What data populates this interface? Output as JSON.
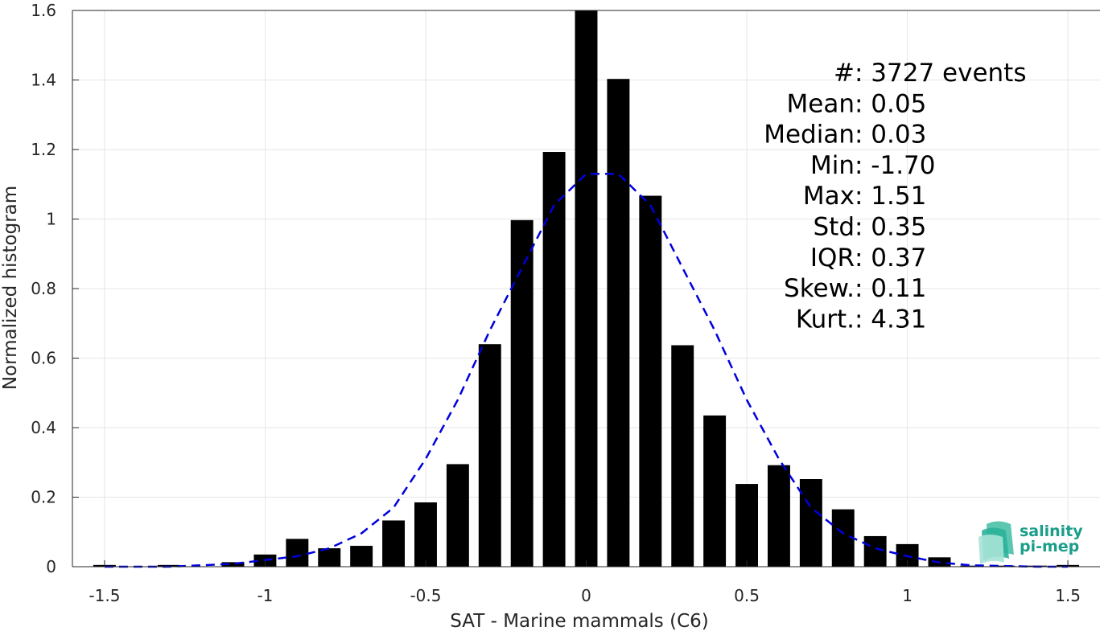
{
  "chart_data": {
    "type": "bar",
    "xlabel": "SAT - Marine mammals (C6)",
    "ylabel": "Normalized histogram",
    "xlim": [
      -1.6,
      1.6
    ],
    "ylim": [
      0,
      1.6
    ],
    "xticks": [
      -1.5,
      -1,
      -0.5,
      0,
      0.5,
      1,
      1.5
    ],
    "xtick_labels": [
      "-1.5",
      "-1",
      "-0.5",
      "0",
      "0.5",
      "1",
      "1.5"
    ],
    "yticks": [
      0,
      0.2,
      0.4,
      0.6,
      0.8,
      1,
      1.2,
      1.4,
      1.6
    ],
    "ytick_labels": [
      "0",
      "0.2",
      "0.4",
      "0.6",
      "0.8",
      "1",
      "1.2",
      "1.4",
      "1.6"
    ],
    "grid": true,
    "bin_width": 0.1,
    "bars": {
      "name": "histogram",
      "color": "#000000",
      "centers": [
        -1.5,
        -1.4,
        -1.3,
        -1.2,
        -1.1,
        -1.0,
        -0.9,
        -0.8,
        -0.7,
        -0.6,
        -0.5,
        -0.4,
        -0.3,
        -0.2,
        -0.1,
        0.0,
        0.1,
        0.2,
        0.3,
        0.4,
        0.5,
        0.6,
        0.7,
        0.8,
        0.9,
        1.0,
        1.1,
        1.2,
        1.3,
        1.4,
        1.5
      ],
      "values": [
        0.005,
        0.0,
        0.005,
        0.0,
        0.013,
        0.035,
        0.08,
        0.053,
        0.06,
        0.133,
        0.185,
        0.295,
        0.64,
        0.997,
        1.193,
        1.6,
        1.403,
        1.067,
        0.637,
        0.435,
        0.238,
        0.292,
        0.252,
        0.165,
        0.088,
        0.065,
        0.027,
        0.003,
        0.003,
        0.003,
        0.005
      ]
    },
    "fit": {
      "name": "gaussian fit",
      "color": "#0000DD",
      "style": "dashed",
      "x": [
        -1.5,
        -1.3,
        -1.1,
        -0.9,
        -0.8,
        -0.7,
        -0.6,
        -0.5,
        -0.4,
        -0.3,
        -0.2,
        -0.1,
        0.0,
        0.1,
        0.2,
        0.3,
        0.4,
        0.5,
        0.6,
        0.7,
        0.8,
        0.9,
        1.0,
        1.1,
        1.2,
        1.4,
        1.5
      ],
      "y": [
        0.0,
        0.0,
        0.008,
        0.03,
        0.053,
        0.096,
        0.17,
        0.31,
        0.48,
        0.68,
        0.86,
        1.04,
        1.13,
        1.13,
        1.04,
        0.86,
        0.68,
        0.48,
        0.31,
        0.17,
        0.096,
        0.053,
        0.03,
        0.012,
        0.004,
        0.0,
        0.0
      ]
    },
    "annotations": [
      {
        "label": "#  ",
        "value": ": 3727 events"
      },
      {
        "label": "Mean ",
        "value": ": 0.05"
      },
      {
        "label": "Median ",
        "value": ": 0.03"
      },
      {
        "label": "Min ",
        "value": ": -1.70"
      },
      {
        "label": "Max ",
        "value": ": 1.51"
      },
      {
        "label": "Std ",
        "value": ": 0.35"
      },
      {
        "label": "IQR ",
        "value": ": 0.37"
      },
      {
        "label": "Skew. ",
        "value": ": 0.11"
      },
      {
        "label": "Kurt. ",
        "value": ": 4.31"
      }
    ]
  },
  "logo": {
    "line1": "salinity",
    "line2": "pi-mep",
    "color": "#1a9e8a"
  }
}
